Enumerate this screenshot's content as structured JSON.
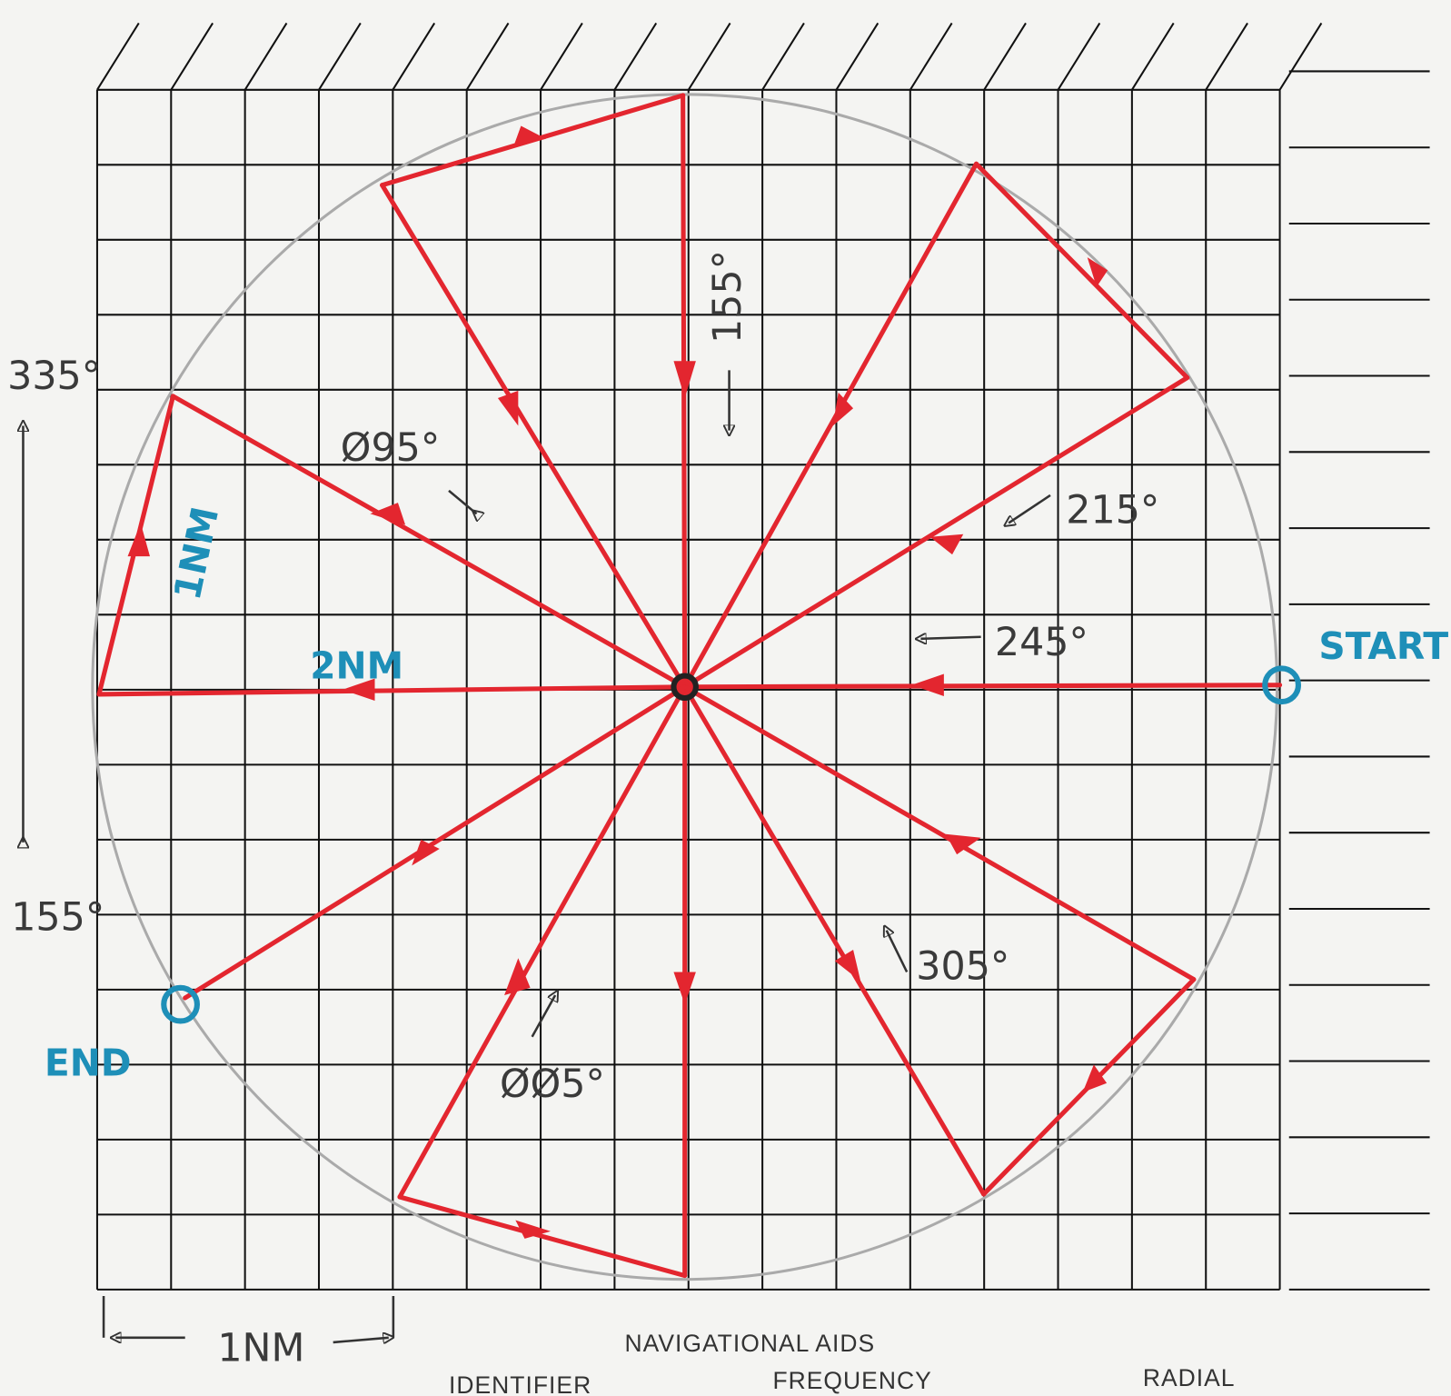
{
  "labels": {
    "left_top": "335°",
    "left_bottom": "155°",
    "inbound_north": "155°",
    "radial_095": "Ø95°",
    "radial_215": "215°",
    "radial_245": "245°",
    "radial_305": "305°",
    "radial_005": "ØØ5°",
    "one_nm_leg": "1NM",
    "two_nm": "2NM",
    "start": "START",
    "end": "END",
    "scale": "1NM"
  },
  "footer": {
    "title": "NAVIGATIONAL AIDS",
    "columns": [
      "IDENTIFIER",
      "FREQUENCY",
      "RADIAL"
    ]
  }
}
